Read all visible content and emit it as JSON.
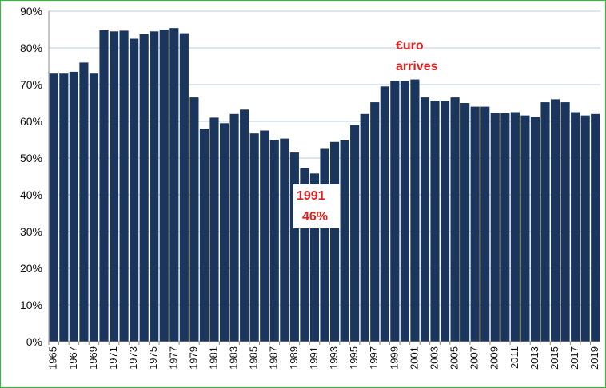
{
  "chart_data": {
    "type": "bar",
    "categories": [
      "1965",
      "1966",
      "1967",
      "1968",
      "1969",
      "1970",
      "1971",
      "1972",
      "1973",
      "1974",
      "1975",
      "1976",
      "1977",
      "1978",
      "1979",
      "1980",
      "1981",
      "1982",
      "1983",
      "1984",
      "1985",
      "1986",
      "1987",
      "1988",
      "1989",
      "1990",
      "1991",
      "1992",
      "1993",
      "1994",
      "1995",
      "1996",
      "1997",
      "1998",
      "1999",
      "2000",
      "2001",
      "2002",
      "2003",
      "2004",
      "2005",
      "2006",
      "2007",
      "2008",
      "2009",
      "2010",
      "2011",
      "2012",
      "2013",
      "2014",
      "2015",
      "2016",
      "2017",
      "2018",
      "2019"
    ],
    "tick_labels": [
      "1965",
      "1967",
      "1969",
      "1971",
      "1973",
      "1975",
      "1977",
      "1979",
      "1981",
      "1983",
      "1985",
      "1987",
      "1989",
      "1991",
      "1993",
      "1995",
      "1997",
      "1999",
      "2001",
      "2003",
      "2005",
      "2007",
      "2009",
      "2011",
      "2013",
      "2015",
      "2017",
      "2019"
    ],
    "values": [
      73,
      73,
      73.5,
      76,
      73,
      84.8,
      84.5,
      84.7,
      82.5,
      83.7,
      84.5,
      85,
      85.4,
      84,
      66.5,
      58,
      61,
      59.5,
      62,
      63.2,
      56.7,
      57.5,
      55,
      55.3,
      51.5,
      47.2,
      45.8,
      52.5,
      54.4,
      55,
      59,
      62,
      65.2,
      69.5,
      71,
      71,
      71.4,
      66.5,
      65.5,
      65.5,
      66.5,
      65,
      64,
      64,
      62.2,
      62.2,
      62.5,
      61.6,
      61.2,
      65.2,
      66,
      65.2,
      62.5,
      61.6,
      62
    ],
    "title": "",
    "xlabel": "",
    "ylabel": "",
    "ylim": [
      0,
      90
    ],
    "ytick_labels": [
      "0%",
      "10%",
      "20%",
      "30%",
      "40%",
      "50%",
      "60%",
      "70%",
      "80%",
      "90%"
    ],
    "grid": "horizontal",
    "bar_color": "#1b365d",
    "grid_color": "#b8cde3",
    "frame_color": "#22c522",
    "annotation_color": "#e01f1f",
    "annotations": [
      {
        "lines": [
          "€uro",
          "arrives"
        ],
        "at": "2000"
      },
      {
        "lines": [
          "1991",
          "46%"
        ],
        "at": "1991"
      }
    ]
  }
}
